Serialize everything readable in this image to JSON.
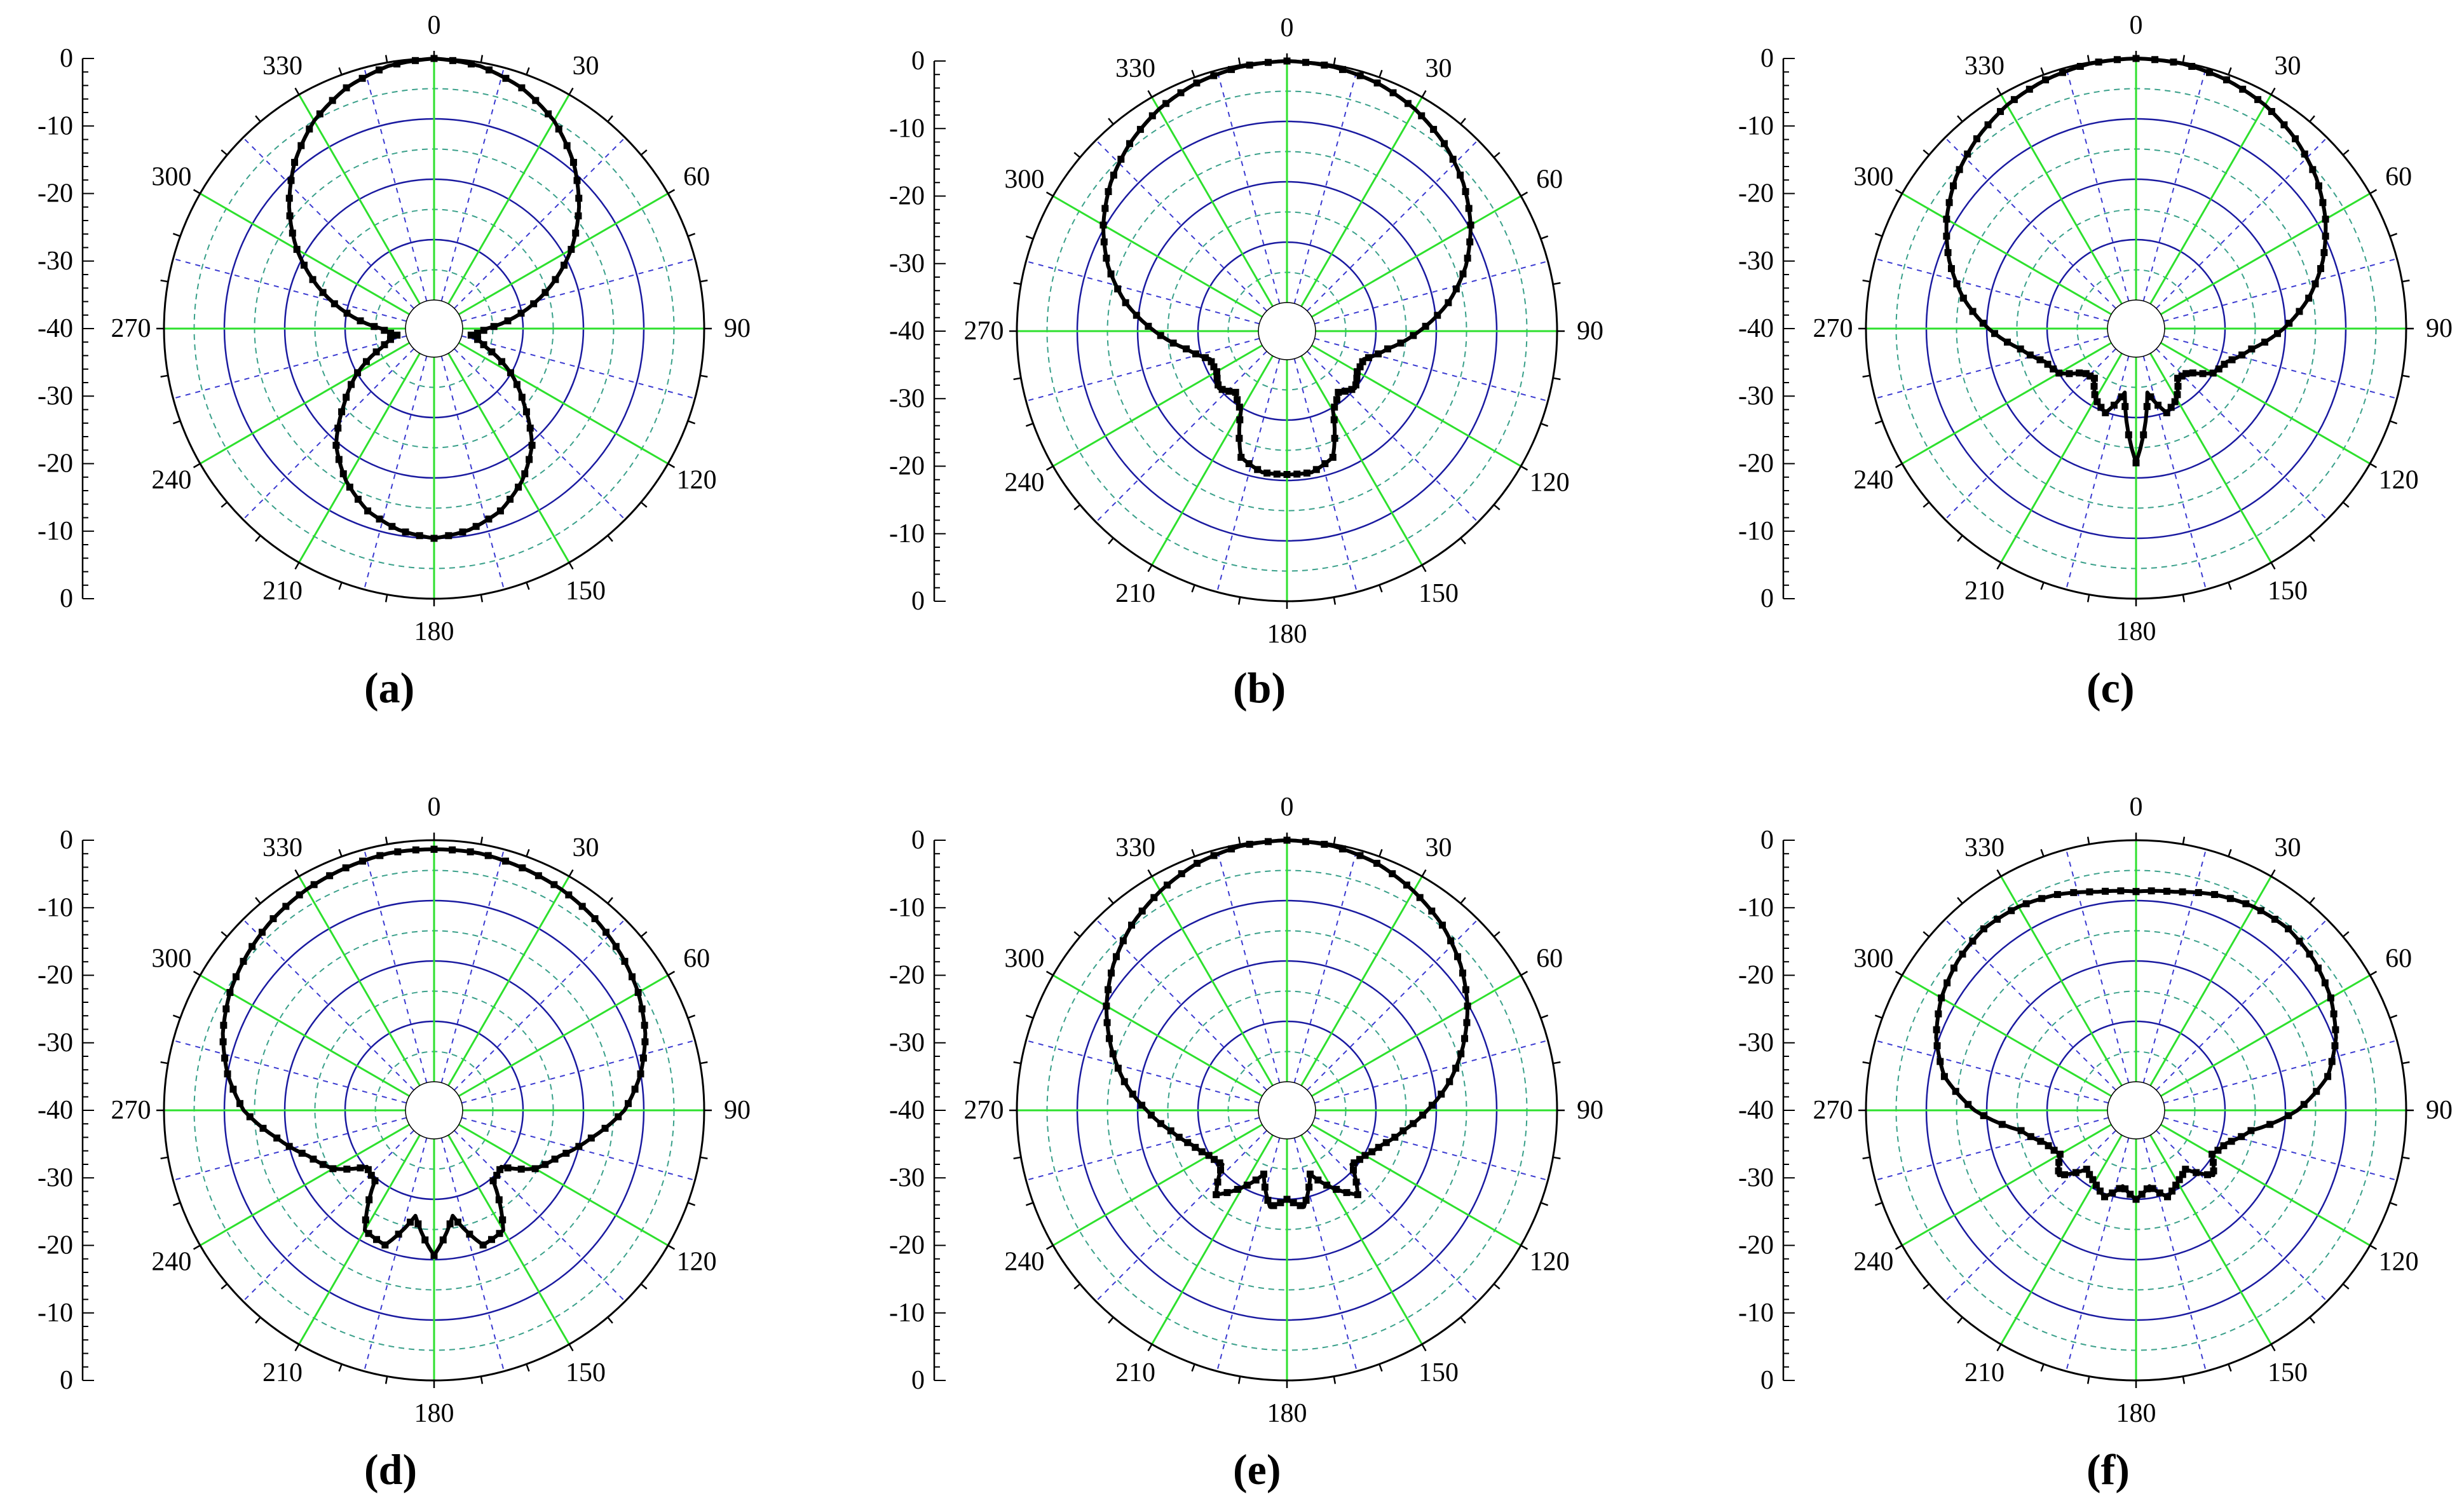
{
  "chart_data": [
    {
      "type": "polar",
      "panel_label": "(a)",
      "angle_tick_labels": [
        "0",
        "30",
        "60",
        "90",
        "120",
        "150",
        "180",
        "210",
        "240",
        "270",
        "300",
        "330"
      ],
      "radial_tick_labels_top": [
        "0",
        "-10",
        "-20",
        "-30",
        "-40"
      ],
      "radial_tick_labels_bottom": [
        "-30",
        "-20",
        "-10",
        "0"
      ],
      "rlim": [
        -40,
        0
      ],
      "grid": true,
      "series": [
        {
          "theta": [
            0,
            10,
            20,
            30,
            40,
            50,
            60,
            70,
            80,
            90,
            100,
            110,
            120,
            130,
            140,
            150,
            160,
            170,
            180,
            190,
            200,
            210,
            220,
            230,
            240,
            250,
            260,
            270,
            280,
            290,
            300,
            310,
            320,
            330,
            340,
            350,
            360
          ],
          "r": [
            0,
            -0.6,
            -2.3,
            -5,
            -8.8,
            -13.4,
            -18.5,
            -24.2,
            -30.1,
            -36,
            -38.5,
            -35.5,
            -30.1,
            -25.3,
            -19.5,
            -15.6,
            -12.6,
            -10.9,
            -10,
            -10.9,
            -12.6,
            -15.6,
            -19.5,
            -25.3,
            -30.1,
            -35.5,
            -38.5,
            -36,
            -30.1,
            -24.2,
            -18.5,
            -13.4,
            -8.8,
            -5,
            -2.3,
            -0.6,
            0
          ]
        }
      ]
    },
    {
      "type": "polar",
      "panel_label": "(b)",
      "angle_tick_labels": [
        "0",
        "30",
        "60",
        "90",
        "120",
        "150",
        "180",
        "210",
        "240",
        "270",
        "300",
        "330"
      ],
      "radial_tick_labels_top": [
        "0",
        "-10",
        "-20",
        "-30",
        "-40"
      ],
      "radial_tick_labels_bottom": [
        "-30",
        "-20",
        "-10",
        "0"
      ],
      "rlim": [
        -40,
        0
      ],
      "grid": true,
      "series": [
        {
          "theta": [
            0,
            10,
            20,
            30,
            40,
            50,
            60,
            70,
            80,
            90,
            100,
            110,
            120,
            130,
            140,
            150,
            160,
            170,
            180,
            190,
            200,
            210,
            220,
            230,
            240,
            250,
            260,
            270,
            280,
            290,
            300,
            310,
            320,
            330,
            340,
            350,
            360
          ],
          "r": [
            0,
            -0.3,
            -1,
            -2.3,
            -4.2,
            -6.6,
            -9.6,
            -13.2,
            -17.6,
            -22.8,
            -27.8,
            -31.2,
            -31.3,
            -30,
            -31.5,
            -29.5,
            -22.5,
            -21,
            -21,
            -21,
            -22.5,
            -29.5,
            -31.5,
            -30,
            -31.3,
            -31.2,
            -27.8,
            -22.8,
            -17.6,
            -13.2,
            -9.6,
            -6.6,
            -4.2,
            -2.3,
            -1,
            -0.3,
            0
          ]
        }
      ]
    },
    {
      "type": "polar",
      "panel_label": "(c)",
      "angle_tick_labels": [
        "0",
        "30",
        "60",
        "90",
        "120",
        "150",
        "180",
        "210",
        "240",
        "270",
        "300",
        "330"
      ],
      "radial_tick_labels_top": [
        "0",
        "-10",
        "-20",
        "-30",
        "-40"
      ],
      "radial_tick_labels_bottom": [
        "-30",
        "-20",
        "-10",
        "0"
      ],
      "rlim": [
        -40,
        0
      ],
      "grid": true,
      "series": [
        {
          "theta": [
            0,
            10,
            20,
            30,
            40,
            50,
            60,
            70,
            80,
            90,
            100,
            110,
            120,
            130,
            140,
            150,
            160,
            170,
            180,
            190,
            200,
            210,
            220,
            230,
            240,
            250,
            260,
            270,
            280,
            290,
            300,
            310,
            320,
            330,
            340,
            350,
            360
          ],
          "r": [
            0,
            -0.2,
            -0.9,
            -2,
            -3.7,
            -5.8,
            -8.5,
            -11.8,
            -15.7,
            -20.3,
            -25.3,
            -28.7,
            -30,
            -33.5,
            -34,
            -31.3,
            -29.9,
            -34,
            -22.5,
            -34,
            -29.9,
            -31.3,
            -34,
            -33.5,
            -30,
            -28.7,
            -25.3,
            -20.3,
            -15.7,
            -11.8,
            -8.5,
            -5.8,
            -3.7,
            -2,
            -0.9,
            -0.2,
            0
          ]
        }
      ]
    },
    {
      "type": "polar",
      "panel_label": "(d)",
      "angle_tick_labels": [
        "0",
        "30",
        "60",
        "90",
        "120",
        "150",
        "180",
        "210",
        "240",
        "270",
        "300",
        "330"
      ],
      "radial_tick_labels_top": [
        "0",
        "-10",
        "-20",
        "-30",
        "-40"
      ],
      "radial_tick_labels_bottom": [
        "-30",
        "-20",
        "-10",
        "0"
      ],
      "rlim": [
        -40,
        0
      ],
      "grid": true,
      "series": [
        {
          "theta": [
            0,
            10,
            20,
            30,
            40,
            50,
            60,
            70,
            80,
            90,
            100,
            110,
            120,
            130,
            140,
            150,
            160,
            170,
            180,
            190,
            200,
            210,
            220,
            230,
            240,
            250,
            260,
            270,
            280,
            290,
            300,
            310,
            320,
            330,
            340,
            350,
            360
          ],
          "r": [
            -1.5,
            -1.5,
            -2,
            -2.5,
            -3.3,
            -4.4,
            -5.7,
            -7.5,
            -10,
            -13.2,
            -18.3,
            -22.6,
            -25.4,
            -30.2,
            -29.5,
            -21.8,
            -21,
            -27,
            -20.7,
            -27,
            -21,
            -21.8,
            -29.5,
            -30.2,
            -25.4,
            -22.6,
            -18.3,
            -13.2,
            -10,
            -7.5,
            -5.7,
            -4.4,
            -3.3,
            -2.5,
            -2,
            -1.5,
            -1.5
          ]
        }
      ]
    },
    {
      "type": "polar",
      "panel_label": "(e)",
      "angle_tick_labels": [
        "0",
        "30",
        "60",
        "90",
        "120",
        "150",
        "180",
        "210",
        "240",
        "270",
        "300",
        "330"
      ],
      "radial_tick_labels_top": [
        "0",
        "-10",
        "-20",
        "-30",
        "-40"
      ],
      "radial_tick_labels_bottom": [
        "-30",
        "-20",
        "-10",
        "0"
      ],
      "rlim": [
        -40,
        0
      ],
      "grid": true,
      "series": [
        {
          "theta": [
            0,
            10,
            20,
            30,
            40,
            50,
            60,
            70,
            80,
            90,
            100,
            110,
            120,
            130,
            140,
            150,
            160,
            170,
            180,
            190,
            200,
            210,
            220,
            230,
            240,
            250,
            260,
            270,
            280,
            290,
            300,
            310,
            320,
            330,
            340,
            350,
            360
          ],
          "r": [
            0,
            -0.3,
            -1.2,
            -2.8,
            -4.7,
            -7.2,
            -10.2,
            -13.7,
            -17.4,
            -21.5,
            -25.2,
            -28,
            -29.8,
            -30.8,
            -26.5,
            -30,
            -33.5,
            -28.5,
            -30,
            -28.5,
            -33.5,
            -30,
            -26.5,
            -30.8,
            -29.8,
            -28,
            -25.2,
            -21.5,
            -17.4,
            -13.7,
            -10.2,
            -7.2,
            -4.7,
            -2.8,
            -1.2,
            -0.3,
            0
          ]
        }
      ]
    },
    {
      "type": "polar",
      "panel_label": "(f)",
      "angle_tick_labels": [
        "0",
        "30",
        "60",
        "90",
        "120",
        "150",
        "180",
        "210",
        "240",
        "270",
        "300",
        "330"
      ],
      "radial_tick_labels_top": [
        "0",
        "-10",
        "-20",
        "-30",
        "-40"
      ],
      "radial_tick_labels_bottom": [
        "-30",
        "-20",
        "-10",
        "0"
      ],
      "rlim": [
        -40,
        0
      ],
      "grid": true,
      "series": [
        {
          "theta": [
            0,
            10,
            20,
            30,
            40,
            50,
            60,
            70,
            80,
            90,
            100,
            110,
            120,
            130,
            140,
            150,
            160,
            170,
            180,
            190,
            200,
            210,
            220,
            230,
            240,
            250,
            260,
            270,
            280,
            290,
            300,
            310,
            320,
            330,
            340,
            350,
            360
          ],
          "r": [
            -8.5,
            -8,
            -6.7,
            -5.8,
            -5.5,
            -6.2,
            -7.5,
            -9.5,
            -12.5,
            -18,
            -25.4,
            -28.8,
            -30.2,
            -28,
            -32,
            -31,
            -29.5,
            -32,
            -30,
            -32,
            -29.5,
            -31,
            -32,
            -28,
            -30.2,
            -28.8,
            -25.4,
            -18,
            -12.5,
            -9.5,
            -7.5,
            -6.2,
            -5.5,
            -5.8,
            -6.7,
            -8,
            -8.5
          ]
        }
      ]
    }
  ]
}
